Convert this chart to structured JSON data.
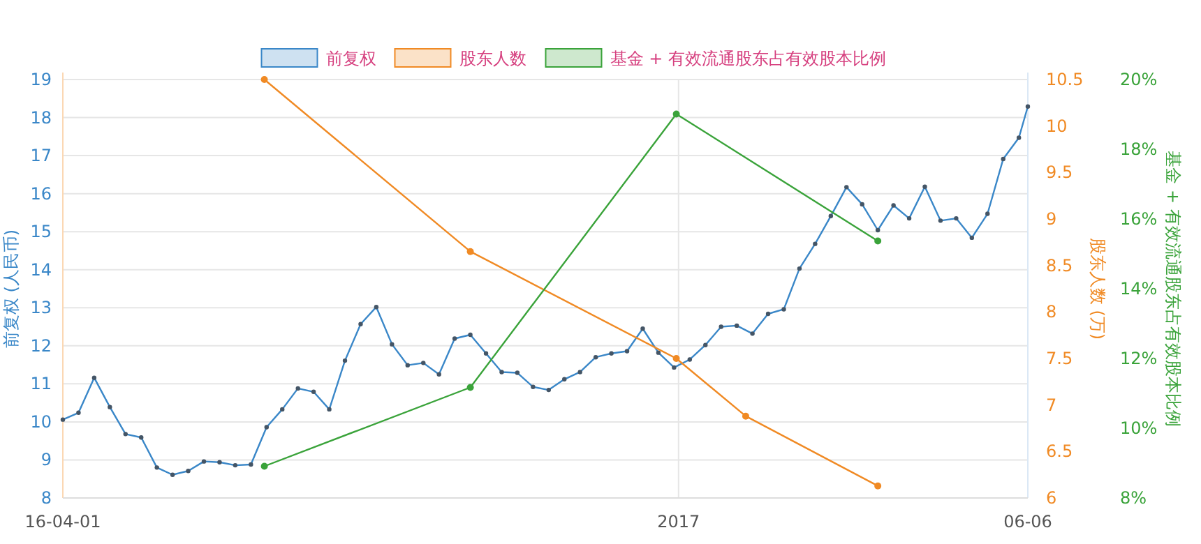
{
  "chart_data": {
    "type": "line",
    "ylabel": "前复权 (人民币)",
    "y2label": "股东人数 (万)",
    "y3label": "基金 + 有效流通股东占有效股本比例",
    "xlim": [
      "2016-04-01",
      "2017-06-06"
    ],
    "xticks": [
      {
        "value": "2016-04-01",
        "label": "16-04-01"
      },
      {
        "value": "2017-01-01",
        "label": "2017"
      },
      {
        "value": "2017-06-06",
        "label": "06-06"
      }
    ],
    "ylim": [
      8,
      19
    ],
    "yticks": [
      8,
      9,
      10,
      11,
      12,
      13,
      14,
      15,
      16,
      17,
      18,
      19
    ],
    "y2lim": [
      6,
      10.5
    ],
    "y2ticks": [
      6,
      6.5,
      7,
      7.5,
      8,
      8.5,
      9,
      9.5,
      10,
      10.5
    ],
    "y3lim": [
      8,
      20
    ],
    "y3ticks": [
      {
        "value": 8,
        "label": "8%"
      },
      {
        "value": 10,
        "label": "10%"
      },
      {
        "value": 12,
        "label": "12%"
      },
      {
        "value": 14,
        "label": "14%"
      },
      {
        "value": 16,
        "label": "16%"
      },
      {
        "value": 18,
        "label": "18%"
      },
      {
        "value": 20,
        "label": "20%"
      }
    ],
    "grid": true,
    "legend": "top",
    "marker": "circle",
    "line_style": "solid",
    "series": [
      {
        "name": "前复权",
        "color": "#3a87c8",
        "axis": "y",
        "x": [
          "2016-04-01",
          "2016-04-08",
          "2016-04-15",
          "2016-04-22",
          "2016-04-29",
          "2016-05-06",
          "2016-05-13",
          "2016-05-20",
          "2016-05-27",
          "2016-06-03",
          "2016-06-10",
          "2016-06-17",
          "2016-06-24",
          "2016-07-01",
          "2016-07-08",
          "2016-07-15",
          "2016-07-22",
          "2016-07-29",
          "2016-08-05",
          "2016-08-12",
          "2016-08-19",
          "2016-08-26",
          "2016-09-02",
          "2016-09-09",
          "2016-09-16",
          "2016-09-23",
          "2016-09-30",
          "2016-10-07",
          "2016-10-14",
          "2016-10-21",
          "2016-10-28",
          "2016-11-04",
          "2016-11-11",
          "2016-11-18",
          "2016-11-25",
          "2016-12-02",
          "2016-12-09",
          "2016-12-16",
          "2016-12-23",
          "2016-12-30",
          "2017-01-06",
          "2017-01-13",
          "2017-01-20",
          "2017-01-27",
          "2017-02-03",
          "2017-02-10",
          "2017-02-17",
          "2017-02-24",
          "2017-03-03",
          "2017-03-10",
          "2017-03-17",
          "2017-03-24",
          "2017-03-31",
          "2017-04-07",
          "2017-04-14",
          "2017-04-21",
          "2017-04-28",
          "2017-05-05",
          "2017-05-12",
          "2017-05-19",
          "2017-05-26",
          "2017-06-02",
          "2017-06-06"
        ],
        "values": [
          10.06,
          10.24,
          11.16,
          10.39,
          9.68,
          9.59,
          8.8,
          8.61,
          8.71,
          8.96,
          8.94,
          8.86,
          8.88,
          9.86,
          10.33,
          10.88,
          10.79,
          10.33,
          11.61,
          12.57,
          13.02,
          12.04,
          11.49,
          11.55,
          11.25,
          12.19,
          12.29,
          11.8,
          11.31,
          11.29,
          10.92,
          10.84,
          11.12,
          11.31,
          11.7,
          11.8,
          11.86,
          12.45,
          11.82,
          11.43,
          11.64,
          12.02,
          12.5,
          12.53,
          12.32,
          12.84,
          12.96,
          14.03,
          14.68,
          15.41,
          16.17,
          15.72,
          15.04,
          15.69,
          15.35,
          16.18,
          15.29,
          15.35,
          14.84,
          15.47,
          16.91,
          17.47,
          18.29
        ]
      },
      {
        "name": "股东人数",
        "color": "#f08a24",
        "axis": "y2",
        "x": [
          "2016-06-30",
          "2016-09-30",
          "2016-12-31",
          "2017-01-31",
          "2017-03-31"
        ],
        "values": [
          10.5,
          8.65,
          7.5,
          6.88,
          6.13
        ]
      },
      {
        "name": "基金 + 有效流通股东占有效股本比例",
        "color": "#3aa33a",
        "axis": "y3",
        "x": [
          "2016-06-30",
          "2016-09-30",
          "2016-12-31",
          "2017-03-31"
        ],
        "values": [
          8.91,
          11.17,
          19.01,
          15.37
        ]
      }
    ]
  }
}
